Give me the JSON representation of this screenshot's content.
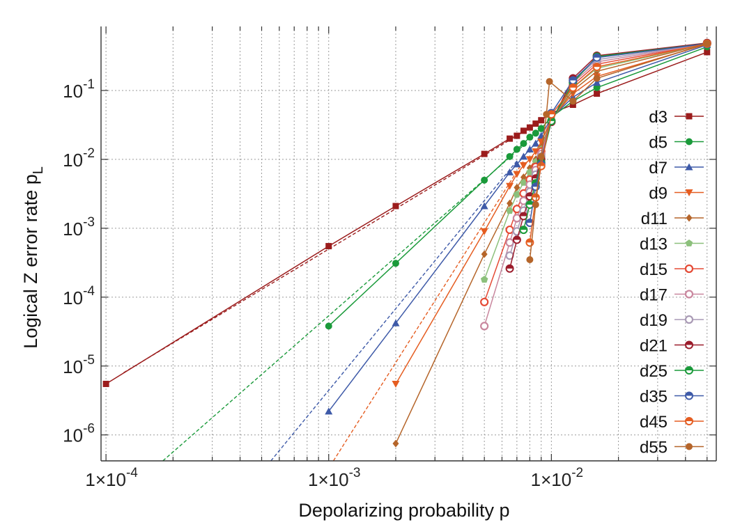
{
  "chart_data": {
    "type": "line",
    "xlabel": "Depolarizing probability  p",
    "ylabel": "Logical Z error rate  p",
    "ylabel_sub": "L",
    "x_scale": "log",
    "y_scale": "log",
    "xlim": [
      9.5e-05,
      0.055
    ],
    "ylim": [
      4.2e-07,
      0.85
    ],
    "x_ticks": [
      {
        "value": 0.0001,
        "mant": "1×10",
        "exp": "-4"
      },
      {
        "value": 0.001,
        "mant": "1×10",
        "exp": "-3"
      },
      {
        "value": 0.01,
        "mant": "1×10",
        "exp": "-2"
      }
    ],
    "y_ticks": [
      {
        "value": 1e-06,
        "base": "10",
        "exp": "-6"
      },
      {
        "value": 1e-05,
        "base": "10",
        "exp": "-5"
      },
      {
        "value": 0.0001,
        "base": "10",
        "exp": "-4"
      },
      {
        "value": 0.001,
        "base": "10",
        "exp": "-3"
      },
      {
        "value": 0.01,
        "base": "10",
        "exp": "-2"
      },
      {
        "value": 0.1,
        "base": "10",
        "exp": "-1"
      }
    ],
    "grid": true,
    "legend_position": "right",
    "series": [
      {
        "name": "d3",
        "color": "#9b1c1c",
        "marker": "square",
        "x": [
          0.0001,
          0.001,
          0.002,
          0.005,
          0.0065,
          0.007,
          0.0075,
          0.008,
          0.0085,
          0.009,
          0.01,
          0.0125,
          0.016,
          0.05
        ],
        "y": [
          5.5e-06,
          0.00055,
          0.0021,
          0.012,
          0.02,
          0.022,
          0.026,
          0.029,
          0.033,
          0.037,
          0.047,
          0.062,
          0.09,
          0.36
        ],
        "fit": [
          [
            0.00012,
            8e-06
          ],
          [
            0.009,
            0.036
          ]
        ]
      },
      {
        "name": "d5",
        "color": "#1a9a3a",
        "marker": "circle",
        "x": [
          0.001,
          0.002,
          0.005,
          0.0065,
          0.007,
          0.0075,
          0.008,
          0.0085,
          0.009,
          0.01,
          0.0125,
          0.016,
          0.05
        ],
        "y": [
          3.8e-05,
          0.00031,
          0.005,
          0.011,
          0.014,
          0.017,
          0.021,
          0.024,
          0.028,
          0.041,
          0.07,
          0.11,
          0.43
        ],
        "fit": [
          [
            0.00018,
            4.2e-07
          ],
          [
            0.0075,
            0.016
          ]
        ]
      },
      {
        "name": "d7",
        "color": "#3e5aa8",
        "marker": "triangle",
        "x": [
          0.001,
          0.002,
          0.005,
          0.0065,
          0.007,
          0.0075,
          0.008,
          0.0085,
          0.009,
          0.01,
          0.0125,
          0.016,
          0.05
        ],
        "y": [
          2.2e-06,
          4.2e-05,
          0.0021,
          0.0065,
          0.0085,
          0.011,
          0.014,
          0.017,
          0.022,
          0.04,
          0.08,
          0.13,
          0.46
        ],
        "fit": [
          [
            0.00055,
            4.2e-07
          ],
          [
            0.007,
            0.0095
          ]
        ]
      },
      {
        "name": "d9",
        "color": "#e55d21",
        "marker": "triangle-down",
        "x": [
          0.002,
          0.005,
          0.0065,
          0.007,
          0.0075,
          0.008,
          0.0085,
          0.009,
          0.01,
          0.0125,
          0.016,
          0.05
        ],
        "y": [
          5.5e-06,
          0.0009,
          0.0041,
          0.0061,
          0.0082,
          0.01,
          0.013,
          0.018,
          0.039,
          0.09,
          0.16,
          0.47
        ],
        "fit": [
          [
            0.00105,
            4.2e-07
          ],
          [
            0.0075,
            0.0095
          ]
        ]
      },
      {
        "name": "d11",
        "color": "#b5652a",
        "marker": "diamond",
        "x": [
          0.002,
          0.005,
          0.0065,
          0.007,
          0.0075,
          0.008,
          0.0085,
          0.009,
          0.01,
          0.0125,
          0.016,
          0.05
        ],
        "y": [
          7.5e-07,
          0.00042,
          0.0023,
          0.0039,
          0.0055,
          0.0075,
          0.01,
          0.015,
          0.038,
          0.1,
          0.19,
          0.48
        ]
      },
      {
        "name": "d13",
        "color": "#8cc07c",
        "marker": "pentagon",
        "x": [
          0.005,
          0.0065,
          0.007,
          0.0075,
          0.008,
          0.0085,
          0.009,
          0.01,
          0.0125,
          0.016,
          0.05
        ],
        "y": [
          0.00018,
          0.0018,
          0.0031,
          0.0046,
          0.0065,
          0.0092,
          0.014,
          0.037,
          0.11,
          0.21,
          0.48
        ]
      },
      {
        "name": "d15",
        "color": "#e54a35",
        "marker": "circle-open",
        "x": [
          0.005,
          0.0065,
          0.007,
          0.0075,
          0.008,
          0.0085,
          0.009,
          0.01,
          0.0125,
          0.016,
          0.05
        ],
        "y": [
          8.5e-05,
          0.00095,
          0.0019,
          0.0032,
          0.0051,
          0.0078,
          0.013,
          0.036,
          0.12,
          0.24,
          0.48
        ]
      },
      {
        "name": "d17",
        "color": "#c9879e",
        "marker": "circle-open",
        "x": [
          0.005,
          0.0065,
          0.007,
          0.0075,
          0.008,
          0.0085,
          0.009,
          0.01,
          0.0125,
          0.016,
          0.05
        ],
        "y": [
          3.8e-05,
          0.00062,
          0.0014,
          0.0025,
          0.0043,
          0.007,
          0.012,
          0.036,
          0.13,
          0.26,
          0.48
        ]
      },
      {
        "name": "d19",
        "color": "#a99ab5",
        "marker": "circle-open",
        "x": [
          0.0065,
          0.007,
          0.0075,
          0.008,
          0.0085,
          0.009,
          0.01,
          0.0125,
          0.016,
          0.05
        ],
        "y": [
          0.0004,
          0.0009,
          0.0018,
          0.0034,
          0.006,
          0.011,
          0.035,
          0.14,
          0.28,
          0.48
        ]
      },
      {
        "name": "d21",
        "color": "#9b1c2b",
        "marker": "circle-half",
        "x": [
          0.0065,
          0.007,
          0.0075,
          0.008,
          0.0085,
          0.009,
          0.01,
          0.0125,
          0.016,
          0.05
        ],
        "y": [
          0.00026,
          0.00068,
          0.0015,
          0.0029,
          0.0053,
          0.01,
          0.035,
          0.15,
          0.32,
          0.49
        ]
      },
      {
        "name": "d25",
        "color": "#1a9a3a",
        "marker": "circle-half",
        "x": [
          0.0075,
          0.008,
          0.0085,
          0.009,
          0.01,
          0.0125,
          0.016,
          0.05
        ],
        "y": [
          0.00095,
          0.0022,
          0.0045,
          0.009,
          0.036,
          0.13,
          0.31,
          0.48
        ]
      },
      {
        "name": "d35",
        "color": "#3e5aa8",
        "marker": "circle-half",
        "x": [
          0.008,
          0.0085,
          0.009,
          0.01,
          0.0125,
          0.016,
          0.05
        ],
        "y": [
          0.0012,
          0.004,
          0.0085,
          0.047,
          0.14,
          0.3,
          0.48
        ]
      },
      {
        "name": "d45",
        "color": "#e55d21",
        "marker": "circle-half",
        "x": [
          0.008,
          0.0085,
          0.009,
          0.01,
          0.0125,
          0.016,
          0.05
        ],
        "y": [
          0.00062,
          0.0028,
          0.008,
          0.045,
          0.11,
          0.22,
          0.48
        ]
      },
      {
        "name": "d55",
        "color": "#b5652a",
        "marker": "circle",
        "x": [
          0.008,
          0.0085,
          0.009,
          0.0095,
          0.0098,
          0.0125,
          0.016,
          0.05
        ],
        "y": [
          0.00035,
          0.0022,
          0.011,
          0.045,
          0.135,
          0.07,
          0.15,
          0.48
        ]
      }
    ]
  }
}
